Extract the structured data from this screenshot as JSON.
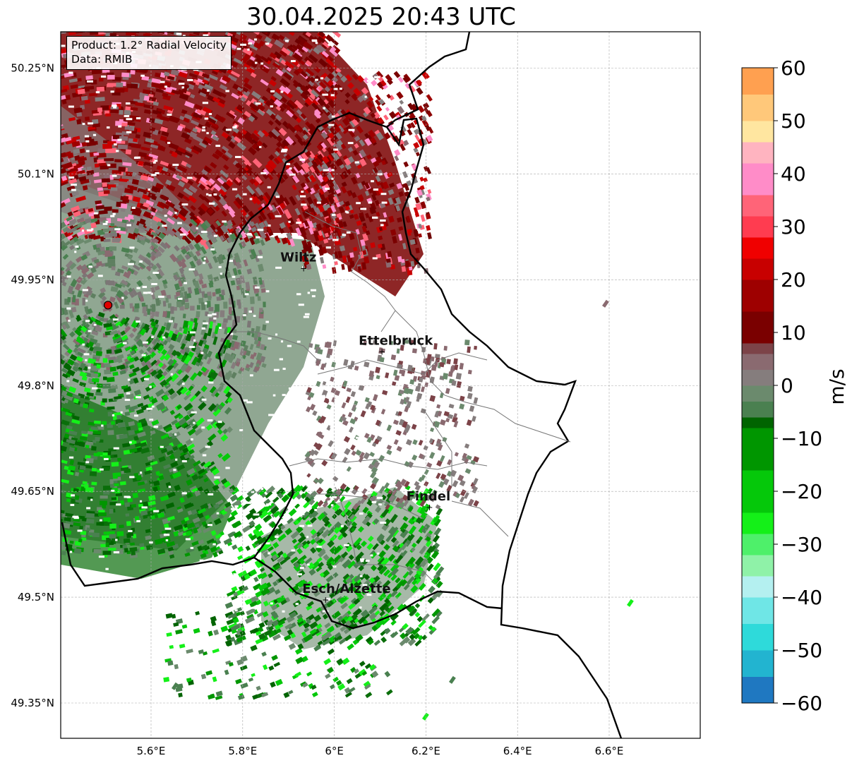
{
  "title": "30.04.2025 20:43 UTC",
  "info": {
    "product_line": "Product: 1.2° Radial Velocity",
    "data_line": "Data: RMIB"
  },
  "map": {
    "lon_range": [
      5.4,
      6.8
    ],
    "lat_range": [
      49.3,
      50.3
    ],
    "lat_ticks": [
      {
        "value": 50.25,
        "label": "50.25°N"
      },
      {
        "value": 50.1,
        "label": "50.1°N"
      },
      {
        "value": 49.95,
        "label": "49.95°N"
      },
      {
        "value": 49.8,
        "label": "49.8°N"
      },
      {
        "value": 49.65,
        "label": "49.65°N"
      },
      {
        "value": 49.5,
        "label": "49.5°N"
      },
      {
        "value": 49.35,
        "label": "49.35°N"
      }
    ],
    "lon_ticks": [
      {
        "value": 5.6,
        "label": "5.6°E"
      },
      {
        "value": 5.8,
        "label": "5.8°E"
      },
      {
        "value": 6.0,
        "label": "6°E"
      },
      {
        "value": 6.2,
        "label": "6.2°E"
      },
      {
        "value": 6.4,
        "label": "6.4°E"
      },
      {
        "value": 6.6,
        "label": "6.6°E"
      }
    ],
    "radar": {
      "lon": 5.506,
      "lat": 49.914
    },
    "cities": [
      {
        "name": "Wiltz",
        "lon": 5.933,
        "lat": 49.966
      },
      {
        "name": "Ettelbruck",
        "lon": 6.104,
        "lat": 49.848
      },
      {
        "name": "Findel",
        "lon": 6.208,
        "lat": 49.627
      },
      {
        "name": "Esch/Alzette",
        "lon": 5.981,
        "lat": 49.496
      }
    ]
  },
  "colorbar": {
    "label": "m/s",
    "min": -60,
    "max": 60,
    "ticks": [
      {
        "value": 60,
        "label": "60"
      },
      {
        "value": 50,
        "label": "50"
      },
      {
        "value": 40,
        "label": "40"
      },
      {
        "value": 30,
        "label": "30"
      },
      {
        "value": 20,
        "label": "20"
      },
      {
        "value": 10,
        "label": "10"
      },
      {
        "value": 0,
        "label": "0"
      },
      {
        "value": -10,
        "label": "−10"
      },
      {
        "value": -20,
        "label": "−20"
      },
      {
        "value": -30,
        "label": "−30"
      },
      {
        "value": -40,
        "label": "−40"
      },
      {
        "value": -50,
        "label": "−50"
      },
      {
        "value": -60,
        "label": "−60"
      }
    ],
    "stops": [
      {
        "from": -60,
        "to": -55,
        "color": "#1f78c1"
      },
      {
        "from": -55,
        "to": -50,
        "color": "#22b4d0"
      },
      {
        "from": -50,
        "to": -45,
        "color": "#2edada"
      },
      {
        "from": -45,
        "to": -40,
        "color": "#6fe6e6"
      },
      {
        "from": -40,
        "to": -36,
        "color": "#b4f0f0"
      },
      {
        "from": -36,
        "to": -32,
        "color": "#8ff2a8"
      },
      {
        "from": -32,
        "to": -28,
        "color": "#4ef06a"
      },
      {
        "from": -28,
        "to": -24,
        "color": "#14f018"
      },
      {
        "from": -24,
        "to": -16,
        "color": "#05c80a"
      },
      {
        "from": -16,
        "to": -8,
        "color": "#009600"
      },
      {
        "from": -8,
        "to": -6,
        "color": "#006400"
      },
      {
        "from": -6,
        "to": -3,
        "color": "#4a8050"
      },
      {
        "from": -3,
        "to": 0,
        "color": "#6b8a6d"
      },
      {
        "from": 0,
        "to": 3,
        "color": "#857d7d"
      },
      {
        "from": 3,
        "to": 6,
        "color": "#8a6a70"
      },
      {
        "from": 6,
        "to": 8,
        "color": "#7c4348"
      },
      {
        "from": 8,
        "to": 14,
        "color": "#7a0000"
      },
      {
        "from": 14,
        "to": 20,
        "color": "#9e0000"
      },
      {
        "from": 20,
        "to": 24,
        "color": "#c80000"
      },
      {
        "from": 24,
        "to": 28,
        "color": "#f00000"
      },
      {
        "from": 28,
        "to": 32,
        "color": "#ff3c50"
      },
      {
        "from": 32,
        "to": 36,
        "color": "#ff6478"
      },
      {
        "from": 36,
        "to": 42,
        "color": "#ff8cc8"
      },
      {
        "from": 42,
        "to": 46,
        "color": "#ffb4c0"
      },
      {
        "from": 46,
        "to": 50,
        "color": "#ffe6a0"
      },
      {
        "from": 50,
        "to": 55,
        "color": "#ffc87a"
      },
      {
        "from": 55,
        "to": 60,
        "color": "#ffa050"
      }
    ]
  }
}
